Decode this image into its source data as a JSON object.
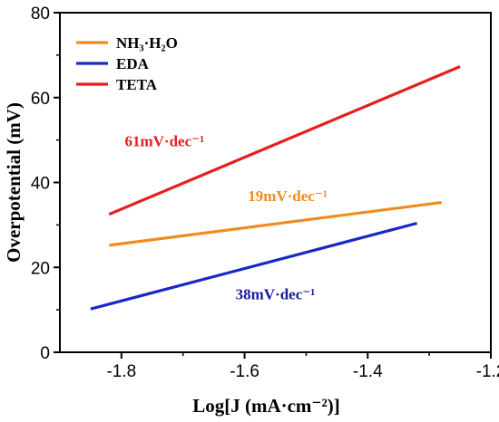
{
  "chart_data": {
    "type": "line",
    "title": "",
    "xlabel": "Log[J (mA·cm⁻²)]",
    "ylabel": "Overpotential (mV)",
    "xlim": [
      -1.9,
      -1.2
    ],
    "ylim": [
      0,
      80
    ],
    "x_ticks": [
      -1.8,
      -1.6,
      -1.4,
      -1.2
    ],
    "x_tick_labels": [
      "-1.8",
      "-1.6",
      "-1.4",
      "-1.2"
    ],
    "y_ticks": [
      0,
      20,
      40,
      60,
      80
    ],
    "y_tick_labels": [
      "0",
      "20",
      "40",
      "60",
      "80"
    ],
    "grid": false,
    "legend_position": "top-left",
    "series": [
      {
        "name": "NH₃·H₂O",
        "color": "#F08C1E",
        "x": [
          -1.82,
          -1.28
        ],
        "y": [
          25.2,
          35.3
        ],
        "annotation": "19mV·dec⁻¹",
        "annotation_x": -1.53,
        "annotation_y": 35.6,
        "annotation_color": "#F08C1E"
      },
      {
        "name": "EDA",
        "color": "#1A28C8",
        "x": [
          -1.85,
          -1.32
        ],
        "y": [
          10.2,
          30.4
        ],
        "annotation": "38mV·dec⁻¹",
        "annotation_x": -1.55,
        "annotation_y": 12.5,
        "annotation_color": "#1A1AA0"
      },
      {
        "name": "TETA",
        "color": "#E81E1E",
        "x": [
          -1.82,
          -1.25
        ],
        "y": [
          32.5,
          67.3
        ],
        "annotation": "61mV·dec⁻¹",
        "annotation_x": -1.73,
        "annotation_y": 48.5,
        "annotation_color": "#E81E1E"
      }
    ]
  }
}
